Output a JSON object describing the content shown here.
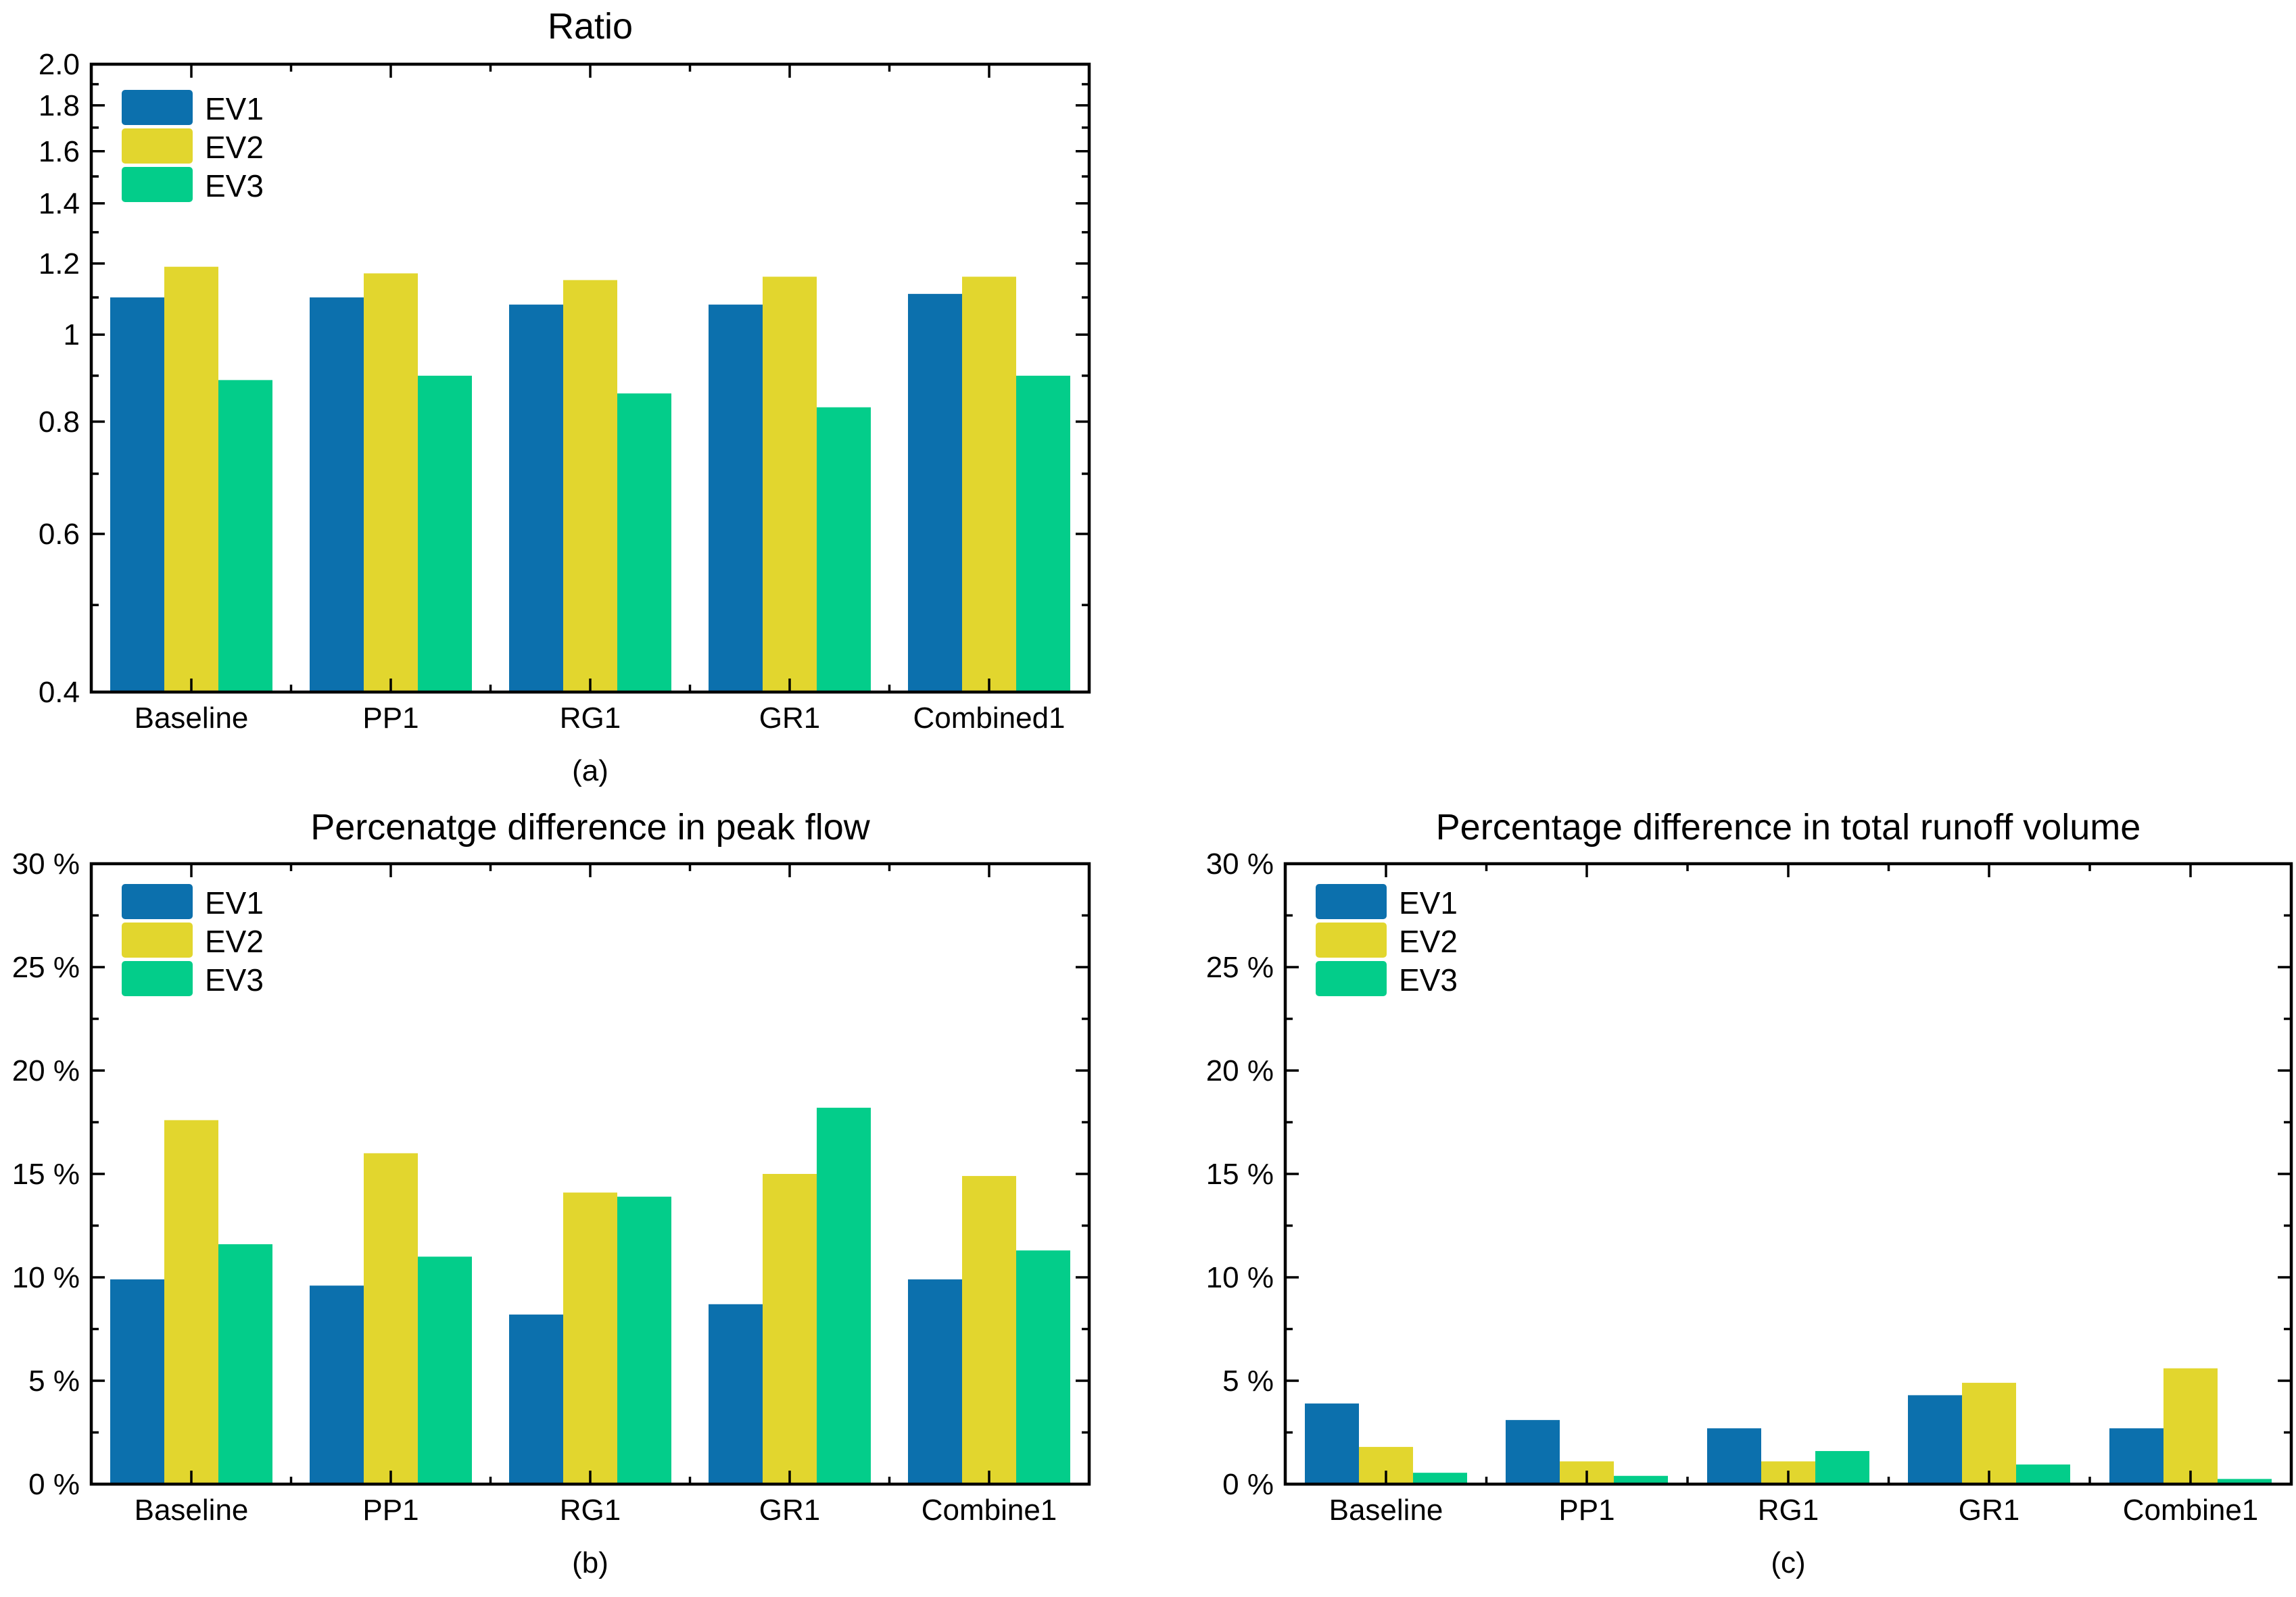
{
  "page": {
    "background": "#ffffff",
    "text_color": "#000000",
    "axis_color": "#000000"
  },
  "series_colors": {
    "EV1": "#0c70ad",
    "EV2": "#e2d62e",
    "EV3": "#03cd8a"
  },
  "chart_data": [
    {
      "id": "a",
      "type": "bar",
      "title": "Ratio",
      "sublabel": "(a)",
      "xlabel": "",
      "ylabel": "",
      "yscale": "log",
      "ylim": [
        0.4,
        2.0
      ],
      "grid": false,
      "legend_position": "top-left",
      "categories": [
        "Baseline",
        "PP1",
        "RG1",
        "GR1",
        "Combined1"
      ],
      "series": [
        {
          "name": "EV1",
          "color": "#0c70ad",
          "values": [
            1.1,
            1.1,
            1.08,
            1.08,
            1.11
          ]
        },
        {
          "name": "EV2",
          "color": "#e2d62e",
          "values": [
            1.19,
            1.17,
            1.15,
            1.16,
            1.16
          ]
        },
        {
          "name": "EV3",
          "color": "#03cd8a",
          "values": [
            0.89,
            0.9,
            0.86,
            0.83,
            0.9
          ]
        }
      ],
      "yticks": [
        {
          "v": 2.0,
          "label": "2.0"
        },
        {
          "v": 1.8,
          "label": "1.8"
        },
        {
          "v": 1.6,
          "label": "1.6"
        },
        {
          "v": 1.4,
          "label": "1.4"
        },
        {
          "v": 1.2,
          "label": "1.2"
        },
        {
          "v": 1.0,
          "label": "1"
        },
        {
          "v": 0.8,
          "label": "0.8"
        },
        {
          "v": 0.6,
          "label": "0.6"
        },
        {
          "v": 0.4,
          "label": "0.4"
        }
      ],
      "yminor": [
        1.9,
        1.7,
        1.5,
        1.3,
        1.1,
        0.9,
        0.7,
        0.5
      ]
    },
    {
      "id": "b",
      "type": "bar",
      "title": "Percenatge difference in peak flow",
      "sublabel": "(b)",
      "xlabel": "",
      "ylabel": "",
      "yscale": "linear",
      "ylim": [
        0,
        30
      ],
      "grid": false,
      "legend_position": "top-left",
      "categories": [
        "Baseline",
        "PP1",
        "RG1",
        "GR1",
        "Combine1"
      ],
      "series": [
        {
          "name": "EV1",
          "color": "#0c70ad",
          "values": [
            9.9,
            9.6,
            8.2,
            8.7,
            9.9
          ]
        },
        {
          "name": "EV2",
          "color": "#e2d62e",
          "values": [
            17.6,
            16.0,
            14.1,
            15.0,
            14.9
          ]
        },
        {
          "name": "EV3",
          "color": "#03cd8a",
          "values": [
            11.6,
            11.0,
            13.9,
            18.2,
            11.3
          ]
        }
      ],
      "yticks": [
        {
          "v": 30,
          "label": "30 %"
        },
        {
          "v": 25,
          "label": "25 %"
        },
        {
          "v": 20,
          "label": "20 %"
        },
        {
          "v": 15,
          "label": "15 %"
        },
        {
          "v": 10,
          "label": "10 %"
        },
        {
          "v": 5,
          "label": "5 %"
        },
        {
          "v": 0,
          "label": "0 %"
        }
      ],
      "yminor": [
        27.5,
        22.5,
        17.5,
        12.5,
        7.5,
        2.5
      ]
    },
    {
      "id": "c",
      "type": "bar",
      "title": "Percentage difference in total runoff volume",
      "sublabel": "(c)",
      "xlabel": "",
      "ylabel": "",
      "yscale": "linear",
      "ylim": [
        0,
        30
      ],
      "grid": false,
      "legend_position": "top-left",
      "categories": [
        "Baseline",
        "PP1",
        "RG1",
        "GR1",
        "Combine1"
      ],
      "series": [
        {
          "name": "EV1",
          "color": "#0c70ad",
          "values": [
            3.9,
            3.1,
            2.7,
            4.3,
            2.7
          ]
        },
        {
          "name": "EV2",
          "color": "#e2d62e",
          "values": [
            1.8,
            1.1,
            1.1,
            4.9,
            5.6
          ]
        },
        {
          "name": "EV3",
          "color": "#03cd8a",
          "values": [
            0.55,
            0.4,
            1.6,
            0.95,
            0.25
          ]
        }
      ],
      "yticks": [
        {
          "v": 30,
          "label": "30 %"
        },
        {
          "v": 25,
          "label": "25 %"
        },
        {
          "v": 20,
          "label": "20 %"
        },
        {
          "v": 15,
          "label": "15 %"
        },
        {
          "v": 10,
          "label": "10 %"
        },
        {
          "v": 5,
          "label": "5 %"
        },
        {
          "v": 0,
          "label": "0 %"
        }
      ],
      "yminor": [
        27.5,
        22.5,
        17.5,
        12.5,
        7.5,
        2.5
      ]
    }
  ]
}
